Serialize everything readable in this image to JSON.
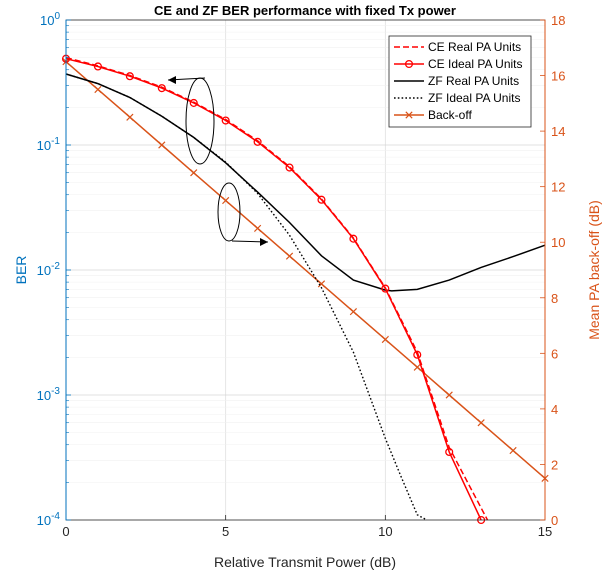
{
  "chart_data": {
    "type": "line",
    "title": "CE and ZF BER performance with fixed Tx power",
    "xlabel": "Relative Transmit Power (dB)",
    "ylabel_left": "BER",
    "ylabel_right": "Mean PA back-off (dB)",
    "xlim": [
      0,
      15
    ],
    "x_ticks": [
      "0",
      "5",
      "10",
      "15"
    ],
    "ylim_left": [
      0.0001,
      1
    ],
    "yscale_left": "log",
    "y_ticks_left": [
      {
        "base": "10",
        "exp": "0"
      },
      {
        "base": "10",
        "exp": "-1"
      },
      {
        "base": "10",
        "exp": "-2"
      },
      {
        "base": "10",
        "exp": "-3"
      },
      {
        "base": "10",
        "exp": "-4"
      }
    ],
    "ylim_right": [
      0,
      18
    ],
    "y_ticks_right": [
      "0",
      "2",
      "4",
      "6",
      "8",
      "10",
      "12",
      "14",
      "16",
      "18"
    ],
    "grid": true,
    "legend_position": "top-right",
    "colors": {
      "left_axis": "#0072BD",
      "right_axis": "#D95319",
      "ce": "#FF0000",
      "zf": "#000000",
      "backoff": "#D95319"
    },
    "series": [
      {
        "name": "CE Real PA Units",
        "axis": "left",
        "style": "dashed",
        "color": "#FF0000",
        "marker": "none",
        "x": [
          0,
          1,
          2,
          3,
          4,
          5,
          6,
          7,
          8,
          9,
          10,
          11,
          12,
          13.2
        ],
        "y": [
          0.5,
          0.43,
          0.36,
          0.29,
          0.22,
          0.16,
          0.108,
          0.067,
          0.037,
          0.018,
          0.0072,
          0.0022,
          0.00038,
          0.0001
        ]
      },
      {
        "name": "CE Ideal PA Units",
        "axis": "left",
        "style": "solid",
        "color": "#FF0000",
        "marker": "circle",
        "x": [
          0,
          1,
          2,
          3,
          4,
          5,
          6,
          7,
          8,
          9,
          10,
          11,
          12,
          13
        ],
        "y": [
          0.49,
          0.425,
          0.355,
          0.285,
          0.217,
          0.157,
          0.106,
          0.066,
          0.0365,
          0.0178,
          0.0071,
          0.0021,
          0.00035,
          0.0001
        ]
      },
      {
        "name": "ZF Real PA Units",
        "axis": "left",
        "style": "solid",
        "color": "#000000",
        "marker": "none",
        "x": [
          0,
          1,
          2,
          3,
          4,
          5,
          6,
          7,
          8,
          9,
          10,
          10.2,
          11,
          12,
          13,
          14,
          15
        ],
        "y": [
          0.37,
          0.31,
          0.24,
          0.17,
          0.115,
          0.072,
          0.042,
          0.024,
          0.013,
          0.0083,
          0.0069,
          0.0068,
          0.007,
          0.0083,
          0.0105,
          0.0128,
          0.0158
        ]
      },
      {
        "name": "ZF Ideal PA Units",
        "axis": "left",
        "style": "dotted",
        "color": "#000000",
        "marker": "none",
        "x": [
          0,
          1,
          2,
          3,
          4,
          5,
          6,
          7,
          8,
          9,
          10,
          10.5,
          11,
          11.3
        ],
        "y": [
          0.37,
          0.31,
          0.24,
          0.17,
          0.115,
          0.073,
          0.041,
          0.019,
          0.0072,
          0.0022,
          0.00045,
          0.00022,
          0.00011,
          0.0001
        ]
      },
      {
        "name": "Back-off",
        "axis": "right",
        "style": "solid",
        "color": "#D95319",
        "marker": "x",
        "x": [
          0,
          1,
          2,
          3,
          4,
          5,
          6,
          7,
          8,
          9,
          10,
          11,
          12,
          13,
          14,
          15
        ],
        "y": [
          16.5,
          15.5,
          14.5,
          13.5,
          12.5,
          11.5,
          10.5,
          9.5,
          8.5,
          7.5,
          6.5,
          5.5,
          4.5,
          3.5,
          2.5,
          1.5
        ]
      }
    ]
  }
}
